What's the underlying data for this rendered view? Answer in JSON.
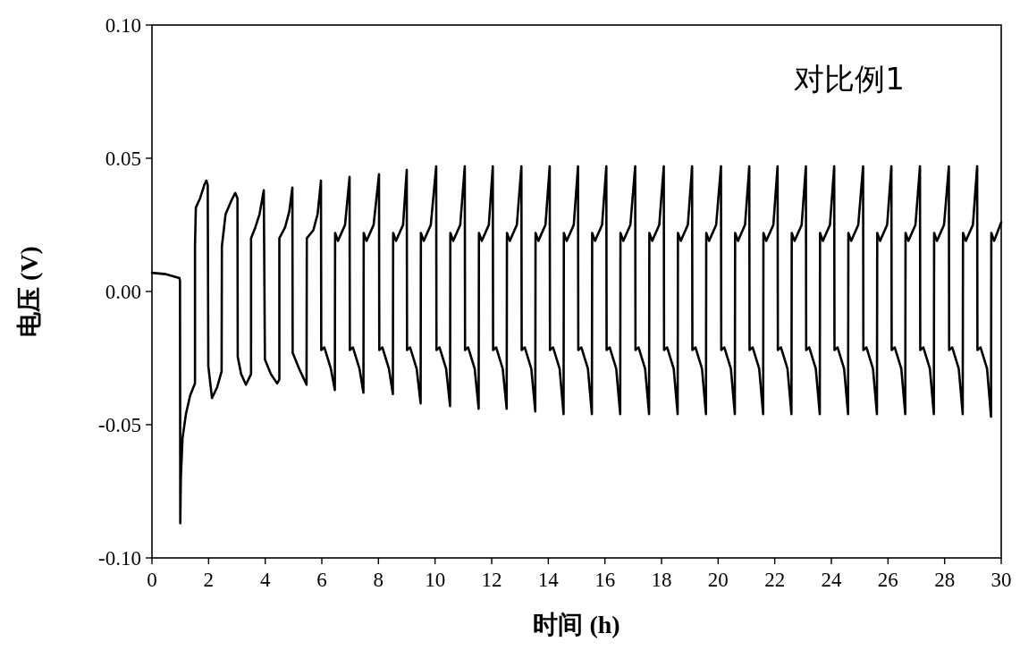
{
  "chart_data": {
    "type": "line",
    "xlabel": "时间 (h)",
    "ylabel": "电压 (V)",
    "annotations": [
      "对比例1"
    ],
    "color": "#000000",
    "xlim": [
      0,
      30
    ],
    "ylim": [
      -0.1,
      0.1
    ],
    "xticks": [
      0,
      2,
      4,
      6,
      8,
      10,
      12,
      14,
      16,
      18,
      20,
      22,
      24,
      26,
      28,
      30
    ],
    "yticks": [
      {
        "value": -0.1,
        "label": "-0.10"
      },
      {
        "value": -0.05,
        "label": "-0.05"
      },
      {
        "value": 0,
        "label": "0.00"
      },
      {
        "value": 0.05,
        "label": "0.05"
      },
      {
        "value": 0.1,
        "label": "0.10"
      }
    ],
    "x": [
      0,
      0.5,
      0.97,
      0.99,
      1.0,
      1.02,
      1.08,
      1.2,
      1.35,
      1.52,
      1.52,
      1.55,
      1.7,
      1.85,
      1.92,
      1.97,
      1.99,
      2.12,
      2.3,
      2.46,
      2.47,
      2.6,
      2.8,
      2.94,
      3.02,
      3.03,
      3.15,
      3.32,
      3.5,
      3.5,
      3.65,
      3.8,
      3.95,
      3.99,
      4.2,
      4.42,
      4.5,
      4.5,
      4.7,
      4.85,
      4.96,
      4.97,
      5.2,
      5.46,
      5.47,
      5.7,
      5.85,
      5.97,
      5.98,
      6.09,
      6.32,
      6.46,
      6.47,
      6.57,
      6.82,
      6.98,
      6.99,
      7.1,
      7.33,
      7.47,
      7.48,
      7.58,
      7.83,
      8.02,
      8.03,
      8.14,
      8.37,
      8.51,
      8.52,
      8.62,
      8.87,
      9.0,
      9.01,
      9.12,
      9.35,
      9.49,
      9.5,
      9.6,
      9.85,
      10.04,
      10.05,
      10.16,
      10.39,
      10.53,
      10.54,
      10.64,
      10.89,
      11.05,
      11.06,
      11.17,
      11.4,
      11.54,
      11.55,
      11.65,
      11.9,
      12.04,
      12.05,
      12.16,
      12.39,
      12.53,
      12.54,
      12.64,
      12.89,
      13.05,
      13.06,
      13.17,
      13.4,
      13.54,
      13.55,
      13.65,
      13.9,
      14.05,
      14.06,
      14.17,
      14.4,
      14.54,
      14.55,
      14.65,
      14.9,
      15.05,
      15.06,
      15.17,
      15.4,
      15.54,
      15.55,
      15.65,
      15.9,
      16.05,
      16.06,
      16.17,
      16.4,
      16.54,
      16.55,
      16.65,
      16.9,
      17.07,
      17.08,
      17.19,
      17.42,
      17.56,
      17.57,
      17.67,
      17.92,
      18.08,
      18.09,
      18.2,
      18.43,
      18.57,
      18.58,
      18.68,
      18.93,
      19.08,
      19.09,
      19.2,
      19.43,
      19.57,
      19.58,
      19.68,
      19.93,
      20.1,
      20.11,
      20.22,
      20.45,
      20.59,
      20.6,
      20.7,
      20.95,
      21.1,
      21.11,
      21.22,
      21.45,
      21.59,
      21.6,
      21.7,
      21.95,
      22.1,
      22.11,
      22.22,
      22.45,
      22.59,
      22.6,
      22.7,
      22.95,
      23.1,
      23.11,
      23.22,
      23.45,
      23.59,
      23.6,
      23.7,
      23.95,
      24.1,
      24.11,
      24.22,
      24.45,
      24.59,
      24.6,
      24.7,
      24.95,
      25.12,
      25.13,
      25.24,
      25.47,
      25.61,
      25.62,
      25.72,
      25.97,
      26.12,
      26.13,
      26.24,
      26.47,
      26.61,
      26.62,
      26.72,
      26.97,
      27.13,
      27.14,
      27.25,
      27.48,
      27.62,
      27.63,
      27.73,
      27.98,
      28.15,
      28.16,
      28.27,
      28.5,
      28.64,
      28.65,
      28.75,
      29.0,
      29.15,
      29.16,
      29.27,
      29.5,
      29.64,
      29.65,
      29.75,
      30.0
    ],
    "values": [
      0.007,
      0.0065,
      0.005,
      0.004,
      -0.087,
      -0.07,
      -0.055,
      -0.046,
      -0.039,
      -0.0345,
      0.017,
      0.0315,
      0.035,
      0.04,
      0.0416,
      0.04,
      -0.028,
      -0.04,
      -0.036,
      -0.03,
      0.017,
      0.029,
      0.034,
      0.037,
      0.035,
      -0.0245,
      -0.031,
      -0.035,
      -0.031,
      0.02,
      0.024,
      0.029,
      0.038,
      -0.0255,
      -0.031,
      -0.0345,
      -0.033,
      0.02,
      0.024,
      0.03,
      0.039,
      -0.023,
      -0.029,
      -0.035,
      0.02,
      0.023,
      0.029,
      0.0416,
      -0.022,
      -0.021,
      -0.029,
      -0.037,
      0.022,
      0.019,
      0.025,
      0.043,
      -0.022,
      -0.021,
      -0.029,
      -0.038,
      0.022,
      0.019,
      0.025,
      0.044,
      -0.022,
      -0.021,
      -0.029,
      -0.0385,
      0.022,
      0.019,
      0.025,
      0.0456,
      -0.022,
      -0.021,
      -0.029,
      -0.042,
      0.022,
      0.019,
      0.025,
      0.047,
      -0.022,
      -0.021,
      -0.029,
      -0.043,
      0.022,
      0.019,
      0.025,
      0.047,
      -0.022,
      -0.021,
      -0.029,
      -0.044,
      0.022,
      0.019,
      0.025,
      0.047,
      -0.022,
      -0.021,
      -0.029,
      -0.044,
      0.022,
      0.019,
      0.025,
      0.047,
      -0.022,
      -0.021,
      -0.029,
      -0.045,
      0.022,
      0.019,
      0.025,
      0.047,
      -0.022,
      -0.021,
      -0.029,
      -0.046,
      0.022,
      0.019,
      0.025,
      0.047,
      -0.022,
      -0.021,
      -0.029,
      -0.046,
      0.022,
      0.019,
      0.025,
      0.047,
      -0.022,
      -0.021,
      -0.029,
      -0.046,
      0.022,
      0.019,
      0.025,
      0.047,
      -0.022,
      -0.021,
      -0.029,
      -0.046,
      0.022,
      0.019,
      0.025,
      0.047,
      -0.022,
      -0.021,
      -0.029,
      -0.046,
      0.022,
      0.019,
      0.025,
      0.047,
      -0.022,
      -0.021,
      -0.029,
      -0.046,
      0.022,
      0.019,
      0.025,
      0.047,
      -0.022,
      -0.021,
      -0.029,
      -0.046,
      0.022,
      0.019,
      0.025,
      0.047,
      -0.022,
      -0.021,
      -0.029,
      -0.046,
      0.022,
      0.019,
      0.025,
      0.047,
      -0.022,
      -0.021,
      -0.029,
      -0.046,
      0.022,
      0.019,
      0.025,
      0.047,
      -0.022,
      -0.021,
      -0.029,
      -0.046,
      0.022,
      0.019,
      0.025,
      0.047,
      -0.022,
      -0.021,
      -0.029,
      -0.046,
      0.022,
      0.019,
      0.025,
      0.047,
      -0.022,
      -0.021,
      -0.029,
      -0.046,
      0.022,
      0.019,
      0.025,
      0.047,
      -0.022,
      -0.021,
      -0.029,
      -0.046,
      0.022,
      0.019,
      0.025,
      0.047,
      -0.022,
      -0.021,
      -0.029,
      -0.046,
      0.022,
      0.019,
      0.025,
      0.047,
      -0.022,
      -0.021,
      -0.029,
      -0.046,
      0.022,
      0.019,
      0.025,
      0.047,
      -0.022,
      -0.021,
      -0.029,
      -0.047,
      0.022,
      0.019,
      0.026
    ]
  }
}
